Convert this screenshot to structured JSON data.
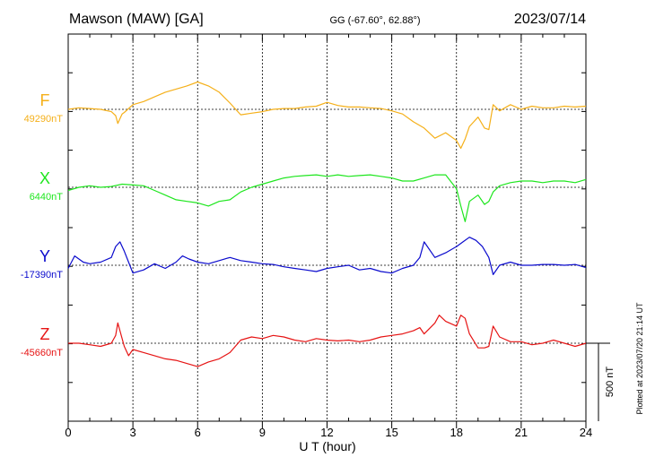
{
  "header": {
    "station": "Mawson (MAW)  [GA]",
    "coords": "GG (-67.60°,  62.88°)",
    "date": "2023/07/14"
  },
  "plotted_note": "Plotted at 2023/07/20 21:14 UT",
  "scale_label": "500 nT",
  "chart_data": {
    "type": "line",
    "xlabel": "U T (hour)",
    "xlim": [
      0,
      24
    ],
    "xticks": [
      0,
      3,
      6,
      9,
      12,
      15,
      18,
      21,
      24
    ],
    "xtick_labels": [
      "0",
      "3",
      "6",
      "9",
      "12",
      "15",
      "18",
      "21",
      "24"
    ],
    "grid": true,
    "scale_bar_nT": 500,
    "series": [
      {
        "name": "F",
        "baseline_label": "49290nT",
        "color": "#f5b01a",
        "x": [
          0,
          0.5,
          1,
          1.5,
          2,
          2.2,
          2.3,
          2.4,
          2.5,
          2.6,
          3,
          3.5,
          4,
          4.5,
          5,
          5.5,
          6,
          6.5,
          7,
          7.5,
          8,
          8.5,
          9,
          9.5,
          10,
          10.5,
          11,
          11.5,
          12,
          12.5,
          13,
          13.5,
          14,
          14.5,
          15,
          15.5,
          16,
          16.5,
          17,
          17.5,
          18,
          18.2,
          18.4,
          18.6,
          19,
          19.3,
          19.5,
          19.7,
          20,
          20.5,
          21,
          21.5,
          22,
          22.5,
          23,
          23.5,
          24
        ],
        "values": [
          0,
          10,
          5,
          0,
          -15,
          -40,
          -90,
          -60,
          -30,
          -20,
          30,
          50,
          80,
          110,
          130,
          150,
          175,
          150,
          110,
          40,
          -35,
          -25,
          -15,
          0,
          5,
          5,
          15,
          20,
          45,
          25,
          15,
          15,
          10,
          5,
          -10,
          -30,
          -80,
          -120,
          -185,
          -150,
          -200,
          -250,
          -190,
          -110,
          -50,
          -120,
          -130,
          30,
          -10,
          30,
          0,
          20,
          10,
          10,
          20,
          15,
          20
        ]
      },
      {
        "name": "X",
        "baseline_label": "6440nT",
        "color": "#1ee61e",
        "x": [
          0,
          0.5,
          1,
          1.5,
          2,
          2.5,
          3,
          3.5,
          4,
          4.5,
          5,
          5.5,
          6,
          6.5,
          7,
          7.5,
          8,
          8.5,
          9,
          9.5,
          10,
          10.5,
          11,
          11.5,
          12,
          12.5,
          13,
          13.5,
          14,
          14.5,
          15,
          15.5,
          16,
          16.5,
          17,
          17.5,
          18,
          18.2,
          18.4,
          18.6,
          19,
          19.3,
          19.5,
          19.7,
          20,
          20.5,
          21,
          21.5,
          22,
          22.5,
          23,
          23.5,
          24
        ],
        "values": [
          -20,
          0,
          10,
          0,
          5,
          20,
          15,
          10,
          -20,
          -50,
          -80,
          -90,
          -100,
          -120,
          -90,
          -80,
          -30,
          0,
          20,
          40,
          60,
          70,
          75,
          80,
          70,
          80,
          70,
          75,
          80,
          70,
          60,
          40,
          40,
          60,
          80,
          80,
          -10,
          -120,
          -220,
          -90,
          -50,
          -110,
          -90,
          -30,
          10,
          30,
          40,
          40,
          30,
          40,
          40,
          30,
          50
        ]
      },
      {
        "name": "Y",
        "baseline_label": "-17390nT",
        "color": "#0a0acd",
        "x": [
          0,
          0.3,
          0.7,
          1,
          1.5,
          2,
          2.2,
          2.4,
          2.6,
          2.8,
          3,
          3.5,
          4,
          4.5,
          5,
          5.3,
          5.6,
          6,
          6.5,
          7,
          7.5,
          8,
          8.5,
          9,
          9.5,
          10,
          10.5,
          11,
          11.5,
          12,
          12.5,
          13,
          13.5,
          14,
          14.5,
          15,
          15.5,
          16,
          16.3,
          16.5,
          17,
          17.5,
          18,
          18.3,
          18.6,
          18.9,
          19.2,
          19.5,
          19.7,
          20,
          20.5,
          21,
          21.5,
          22,
          22.5,
          23,
          23.5,
          24
        ],
        "values": [
          -20,
          60,
          20,
          10,
          20,
          50,
          120,
          150,
          90,
          20,
          -50,
          -30,
          10,
          -20,
          20,
          60,
          40,
          20,
          10,
          30,
          50,
          30,
          20,
          10,
          5,
          -10,
          -20,
          -30,
          -40,
          -20,
          -10,
          0,
          -30,
          -20,
          -40,
          -50,
          -20,
          0,
          50,
          150,
          50,
          80,
          120,
          150,
          180,
          160,
          120,
          50,
          -60,
          0,
          20,
          0,
          0,
          5,
          5,
          0,
          5,
          -15
        ]
      },
      {
        "name": "Z",
        "baseline_label": "-45660nT",
        "color": "#e61414",
        "x": [
          0,
          0.5,
          1,
          1.5,
          2,
          2.2,
          2.3,
          2.4,
          2.6,
          2.8,
          3,
          3.5,
          4,
          4.5,
          5,
          5.5,
          6,
          6.5,
          7,
          7.5,
          8,
          8.5,
          9,
          9.5,
          10,
          10.5,
          11,
          11.5,
          12,
          12.5,
          13,
          13.5,
          14,
          14.5,
          15,
          15.5,
          16,
          16.3,
          16.5,
          17,
          17.2,
          17.5,
          18,
          18.2,
          18.4,
          18.6,
          19,
          19.3,
          19.5,
          19.7,
          20,
          20.5,
          21,
          21.5,
          22,
          22.5,
          23,
          23.5,
          24
        ],
        "values": [
          0,
          0,
          -10,
          -20,
          0,
          50,
          130,
          80,
          -20,
          -80,
          -40,
          -60,
          -80,
          -100,
          -110,
          -130,
          -150,
          -120,
          -100,
          -60,
          20,
          40,
          30,
          50,
          40,
          20,
          10,
          30,
          20,
          15,
          20,
          10,
          20,
          40,
          50,
          60,
          80,
          100,
          60,
          130,
          180,
          140,
          110,
          180,
          160,
          60,
          -30,
          -30,
          -20,
          110,
          40,
          10,
          10,
          -10,
          0,
          20,
          0,
          -20,
          0
        ]
      }
    ]
  }
}
